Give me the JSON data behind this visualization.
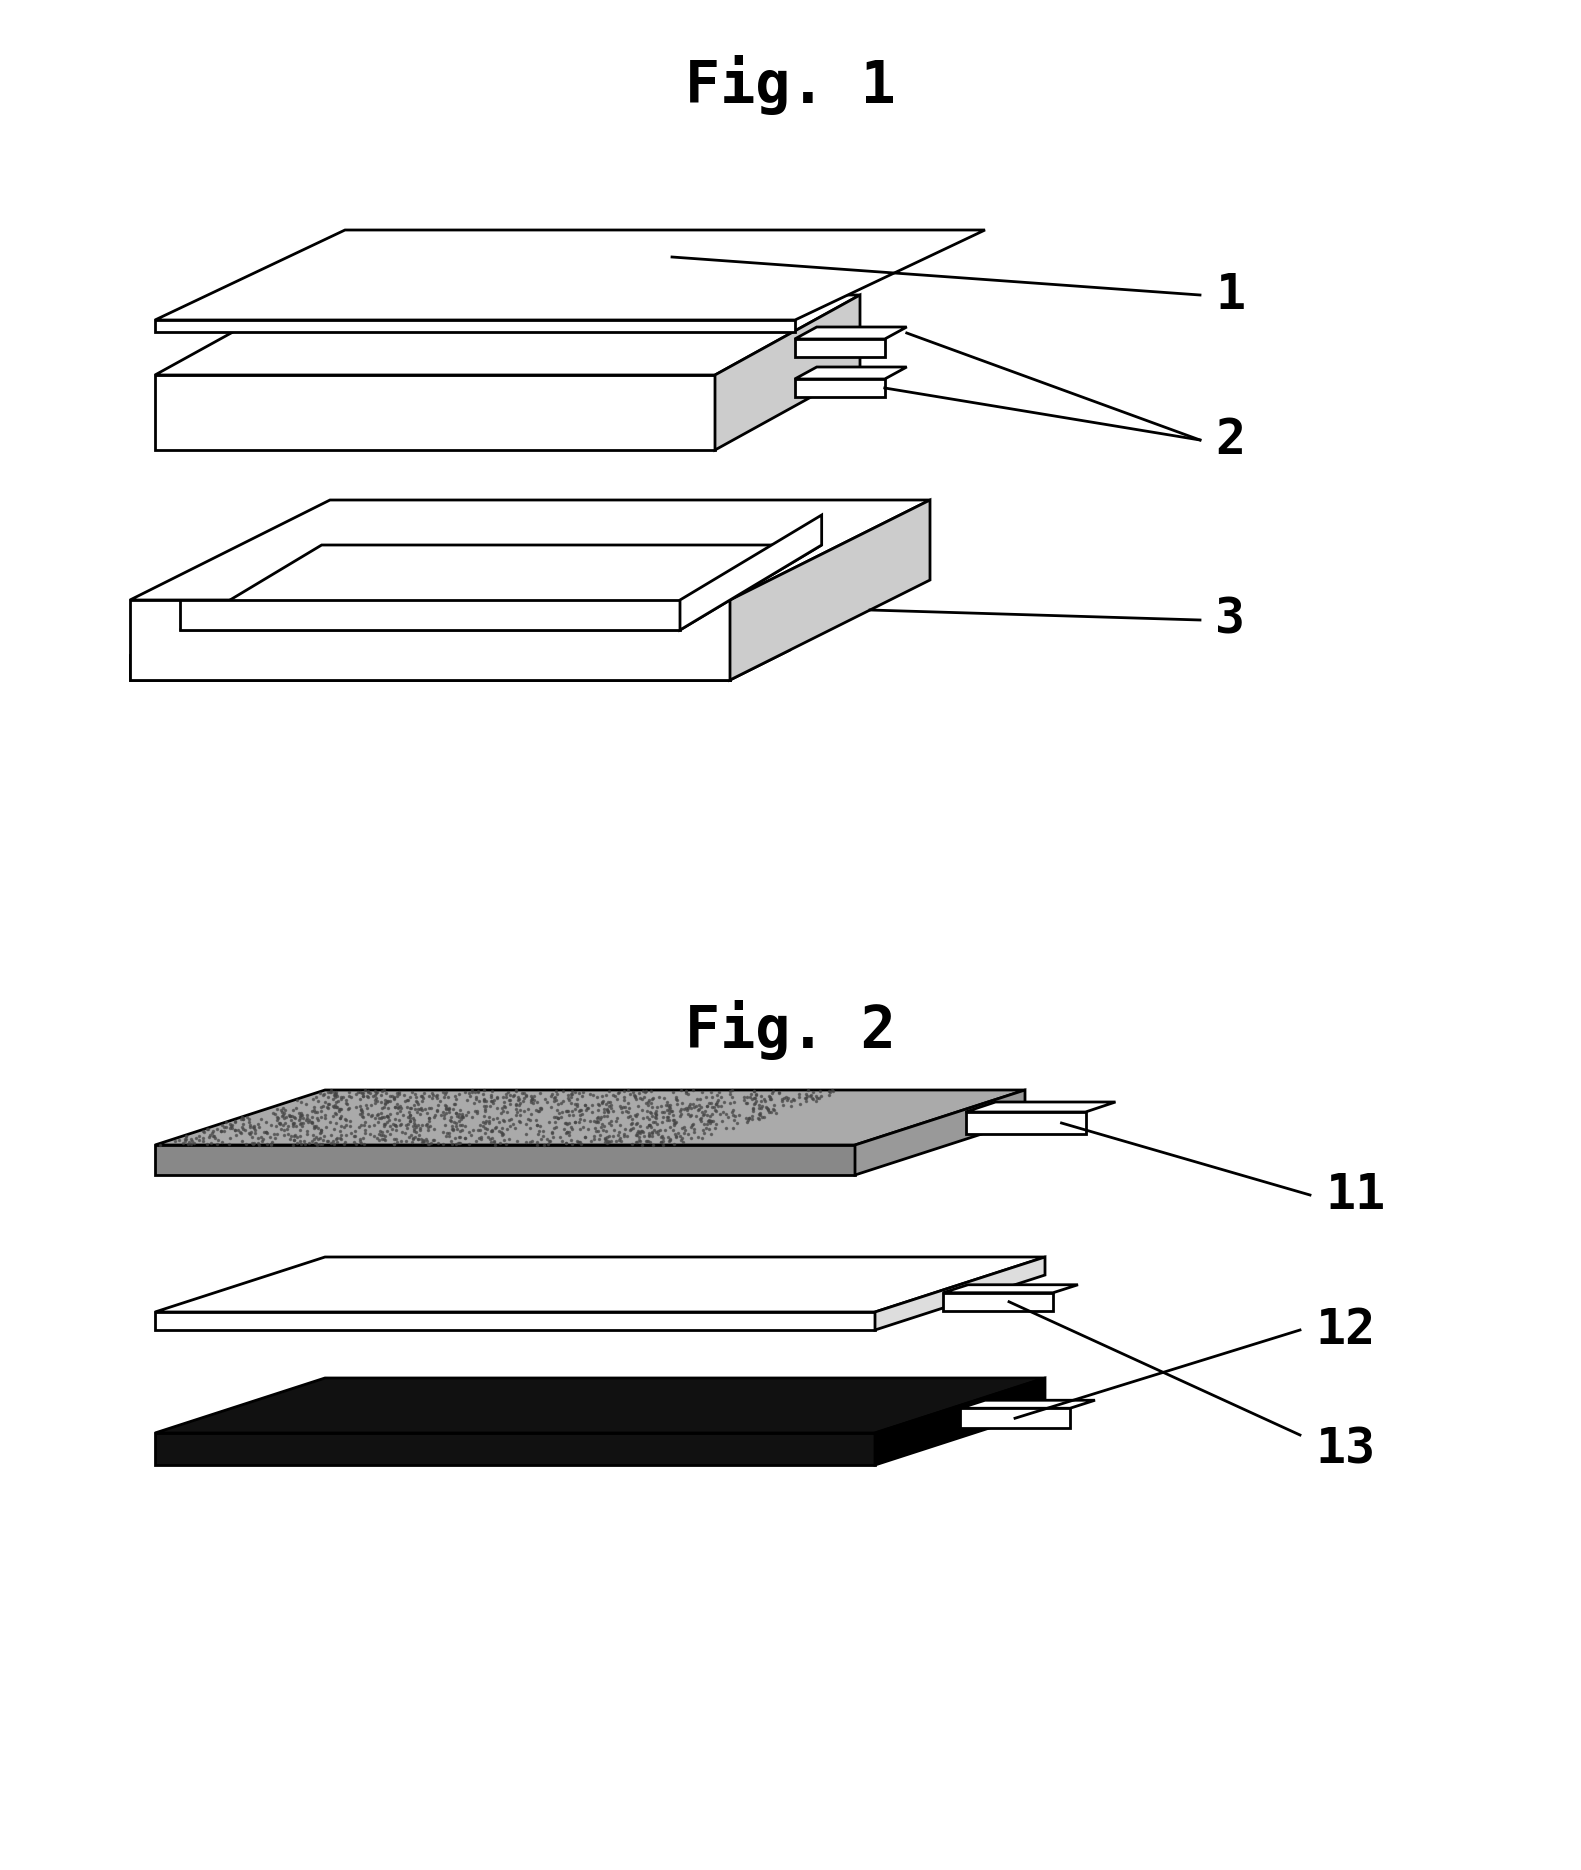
{
  "fig1_title": "Fig. 1",
  "fig2_title": "Fig. 2",
  "background_color": "#ffffff",
  "line_color": "#000000",
  "label1": "1",
  "label2": "2",
  "label3": "3",
  "label11": "11",
  "label12": "12",
  "label13": "13"
}
